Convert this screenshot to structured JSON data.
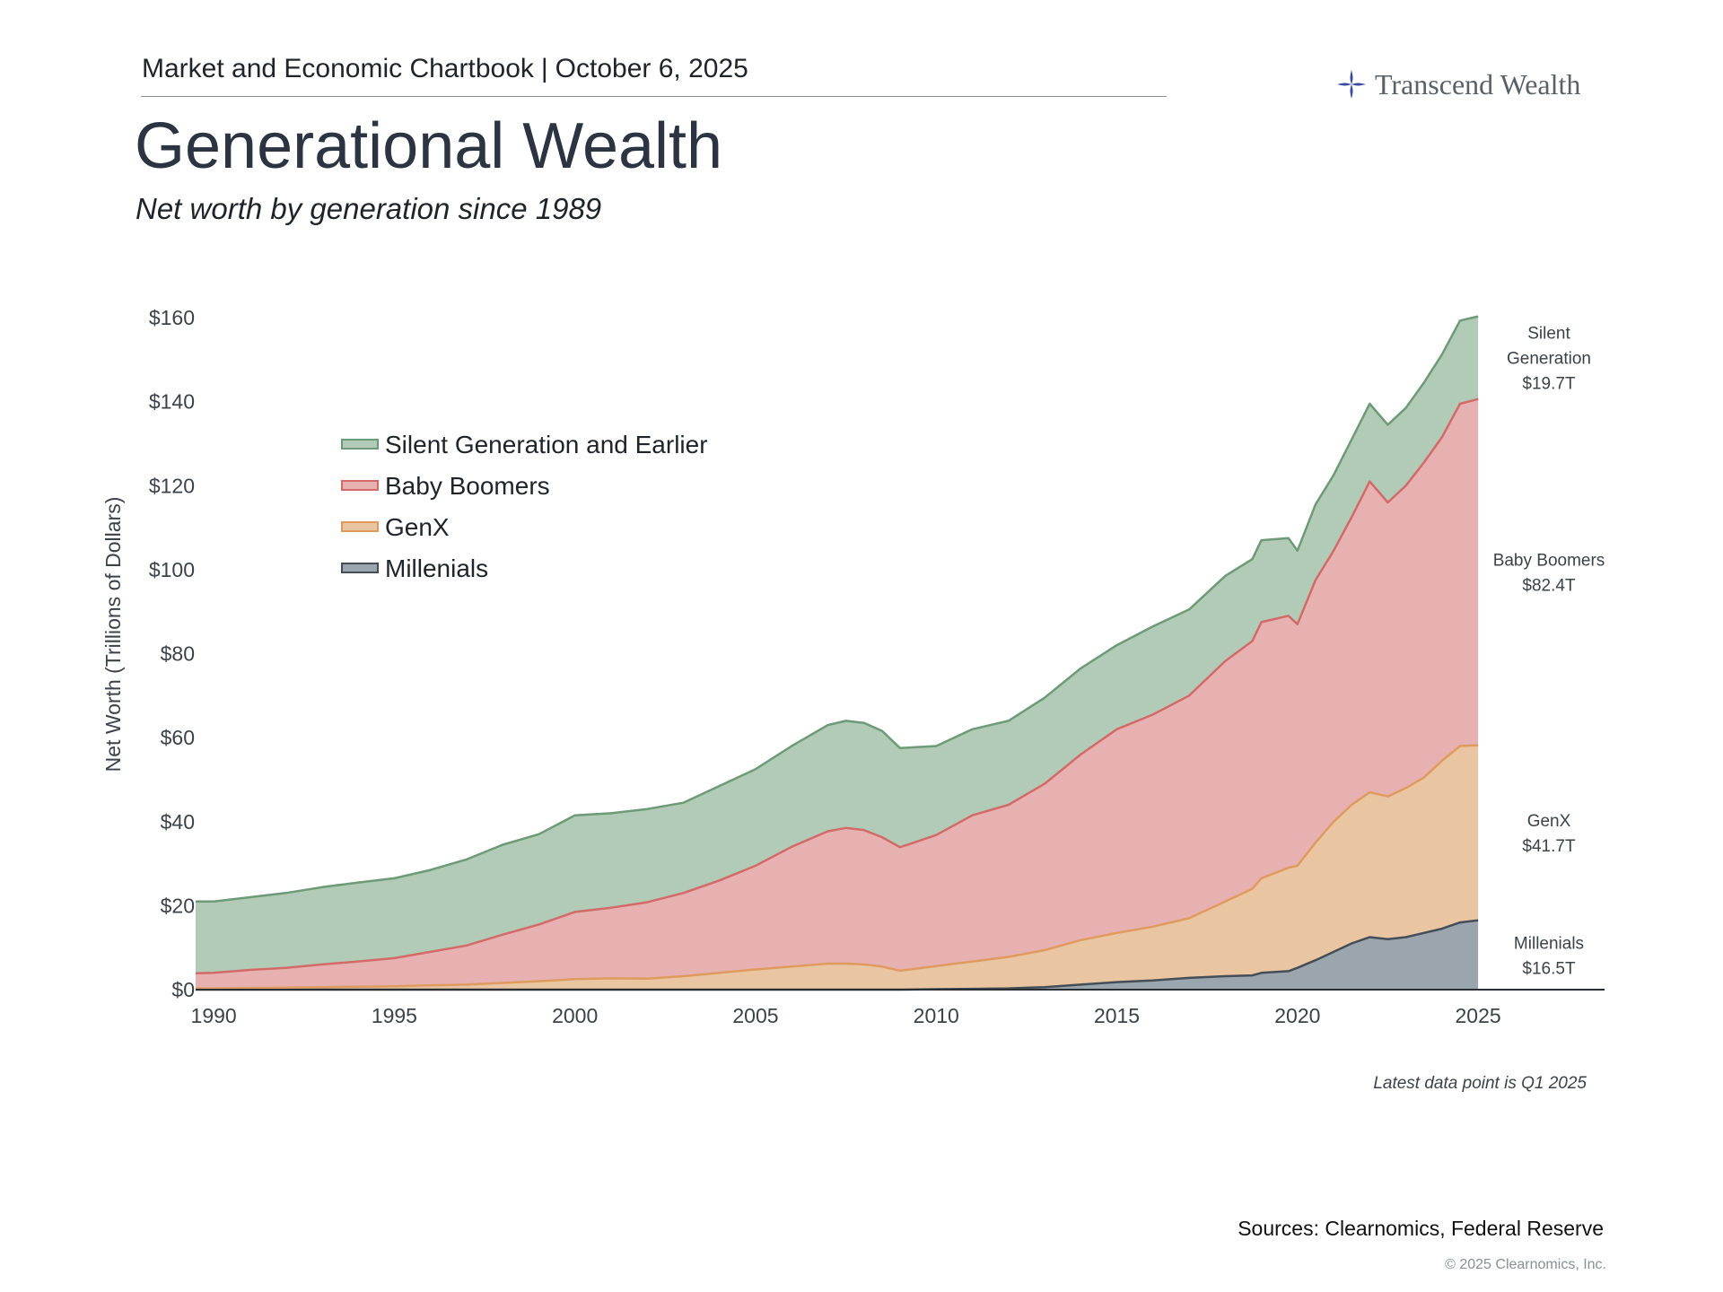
{
  "header": {
    "chartbook": "Market and Economic Chartbook",
    "date": "October 6, 2025",
    "logo_text": "Transcend Wealth",
    "logo_icon": "compass-star-icon"
  },
  "title": "Generational Wealth",
  "subtitle": "Net worth by generation since 1989",
  "footnote": "Latest data point is Q1 2025",
  "sources": "Sources: Clearnomics, Federal Reserve",
  "copyright": "© 2025 Clearnomics, Inc.",
  "chart_data": {
    "type": "area",
    "stacked": true,
    "ylabel": "Net Worth (Trillions of Dollars)",
    "xlabel": "",
    "ylim": [
      0,
      160
    ],
    "xlim": [
      1989.5,
      2028.5
    ],
    "y_ticks": [
      0,
      20,
      40,
      60,
      80,
      100,
      120,
      140,
      160
    ],
    "y_tick_labels": [
      "$0",
      "$20",
      "$40",
      "$60",
      "$80",
      "$100",
      "$120",
      "$140",
      "$160"
    ],
    "x_ticks": [
      1990,
      1995,
      2000,
      2005,
      2010,
      2015,
      2020,
      2025
    ],
    "grid": false,
    "legend_position": "upper-left",
    "x": [
      1989.5,
      1990,
      1991,
      1992,
      1993,
      1994,
      1995,
      1996,
      1997,
      1998,
      1999,
      2000,
      2001,
      2002,
      2003,
      2004,
      2005,
      2006,
      2007,
      2007.5,
      2008,
      2008.5,
      2009,
      2010,
      2011,
      2012,
      2013,
      2014,
      2015,
      2016,
      2017,
      2018,
      2018.75,
      2019,
      2019.75,
      2020,
      2020.5,
      2021,
      2021.5,
      2022,
      2022.5,
      2023,
      2023.5,
      2024,
      2024.5,
      2025
    ],
    "series": [
      {
        "name": "Millenials",
        "color": "#9aa5ad",
        "line_color": "#454e56",
        "values": [
          0,
          0,
          0,
          0,
          0,
          0,
          0,
          0,
          0,
          0,
          0,
          0,
          0,
          0,
          0,
          0,
          0,
          0,
          0,
          0,
          0,
          0,
          0,
          0.1,
          0.2,
          0.3,
          0.6,
          1.2,
          1.8,
          2.2,
          2.8,
          3.2,
          3.4,
          4,
          4.4,
          5.2,
          7,
          9,
          11,
          12.5,
          12,
          12.5,
          13.5,
          14.5,
          16,
          16.5
        ]
      },
      {
        "name": "GenX",
        "color": "#e9c6a1",
        "line_color": "#df9a60",
        "values": [
          0.3,
          0.3,
          0.4,
          0.5,
          0.6,
          0.7,
          0.8,
          1,
          1.2,
          1.6,
          2,
          2.5,
          2.7,
          2.6,
          3.2,
          4,
          4.8,
          5.5,
          6.2,
          6.2,
          6,
          5.5,
          4.5,
          5.5,
          6.5,
          7.5,
          8.8,
          10.6,
          11.7,
          12.8,
          14.2,
          17.8,
          20.6,
          22.5,
          24.6,
          24.3,
          28,
          31,
          33,
          34.5,
          34,
          35.5,
          37,
          40,
          42,
          41.7
        ]
      },
      {
        "name": "Baby Boomers",
        "color": "#e8b1b1",
        "line_color": "#d16a68",
        "values": [
          3.6,
          3.7,
          4.3,
          4.7,
          5.4,
          6,
          6.7,
          8,
          9.3,
          11.5,
          13.5,
          16,
          16.8,
          18.2,
          19.8,
          22,
          24.7,
          28.5,
          31.5,
          32.3,
          32,
          30.8,
          29.4,
          31.2,
          34.8,
          36.2,
          39.6,
          44.2,
          48.5,
          50.5,
          53,
          57.2,
          59,
          61,
          60,
          57.5,
          62.5,
          64.5,
          68.5,
          74,
          70,
          72,
          75,
          77,
          81.5,
          82.4
        ]
      },
      {
        "name": "Silent Generation and Earlier",
        "color": "#b1cbb7",
        "line_color": "#6e9a77",
        "values": [
          17.1,
          17,
          17.3,
          17.8,
          18.4,
          18.8,
          19,
          19.5,
          20.5,
          21.4,
          21.5,
          23,
          22.5,
          22.2,
          21.5,
          22.5,
          23,
          24,
          25.3,
          25.5,
          25.5,
          25.3,
          23.6,
          21.2,
          20.5,
          20,
          20.5,
          20.5,
          20,
          21,
          20.5,
          20.3,
          19.5,
          19.5,
          18.5,
          17.5,
          18,
          18,
          18.5,
          18.5,
          18.5,
          18.5,
          19,
          19.7,
          19.8,
          19.7
        ]
      }
    ],
    "legend_order": [
      "Silent Generation and Earlier",
      "Baby Boomers",
      "GenX",
      "Millenials"
    ],
    "end_labels": [
      {
        "series": "Silent Generation and Earlier",
        "lines": [
          "Silent",
          "Generation",
          "$19.7T"
        ]
      },
      {
        "series": "Baby Boomers",
        "lines": [
          "Baby Boomers",
          "$82.4T"
        ]
      },
      {
        "series": "GenX",
        "lines": [
          "GenX",
          "$41.7T"
        ]
      },
      {
        "series": "Millenials",
        "lines": [
          "Millenials",
          "$16.5T"
        ]
      }
    ]
  }
}
